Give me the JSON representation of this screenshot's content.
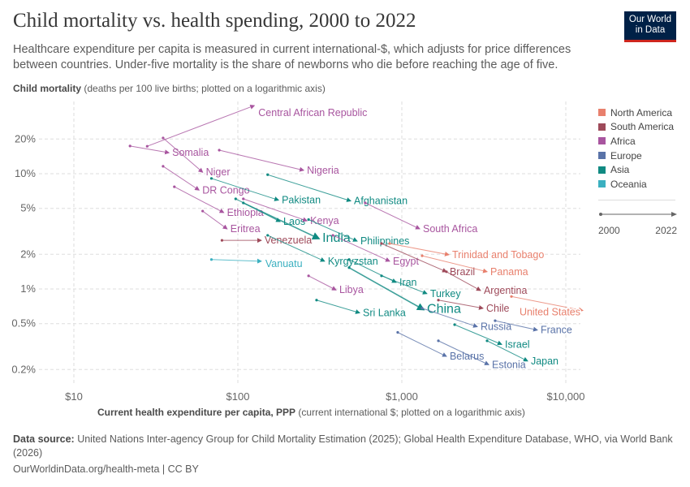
{
  "title": "Child mortality vs. health spending, 2000 to 2022",
  "subtitle": "Healthcare expenditure per capita is measured in current international-$, which adjusts for price differences between countries. Under-five mortality is the share of newborns who die before reaching the age of five.",
  "logo": {
    "line1": "Our World",
    "line2": "in Data",
    "bg": "#002147",
    "accent": "#ce261e"
  },
  "footer": {
    "source_label": "Data source:",
    "source_text": " United Nations Inter-agency Group for Child Mortality Estimation (2025); Global Health Expenditure Database, WHO, via World Bank (2026)",
    "url": "OurWorldinData.org/health-meta | CC BY"
  },
  "legend": {
    "regions": [
      {
        "name": "North America",
        "color": "#E8806D"
      },
      {
        "name": "South America",
        "color": "#9E4A5A"
      },
      {
        "name": "Africa",
        "color": "#A8559F"
      },
      {
        "name": "Europe",
        "color": "#5A73A8"
      },
      {
        "name": "Asia",
        "color": "#108A82"
      },
      {
        "name": "Oceania",
        "color": "#3BB0C0"
      }
    ],
    "time_start": "2000",
    "time_end": "2022"
  },
  "chart_data": {
    "type": "scatter",
    "title": "Child mortality vs. health spending, 2000 to 2022",
    "ylabel_bold": "Child mortality",
    "ylabel_rest": " (deaths per 100 live births; plotted on a logarithmic axis)",
    "xlabel_bold": "Current health expenditure per capita, PPP",
    "xlabel_rest": " (current international $; plotted on a logarithmic axis)",
    "x_scale": "log",
    "y_scale": "log",
    "xlim": [
      6,
      13000
    ],
    "ylim": [
      0.15,
      45
    ],
    "x_ticks": [
      {
        "v": 10,
        "label": "$10"
      },
      {
        "v": 100,
        "label": "$100"
      },
      {
        "v": 1000,
        "label": "$1,000"
      },
      {
        "v": 10000,
        "label": "$10,000"
      }
    ],
    "y_ticks": [
      {
        "v": 20,
        "label": "20%"
      },
      {
        "v": 10,
        "label": "10%"
      },
      {
        "v": 5,
        "label": "5%"
      },
      {
        "v": 2,
        "label": "2%"
      },
      {
        "v": 1,
        "label": "1%"
      },
      {
        "v": 0.5,
        "label": "0.5%"
      },
      {
        "v": 0.2,
        "label": "0.2%"
      }
    ],
    "grid": true,
    "legend_position": "right",
    "series": [
      {
        "name": "Central African Republic",
        "region": "Africa",
        "x": [
          28,
          126
        ],
        "y": [
          17.3,
          39
        ]
      },
      {
        "name": "Somalia",
        "region": "Africa",
        "x": [
          22,
          38
        ],
        "y": [
          17.4,
          15.2
        ]
      },
      {
        "name": "Niger",
        "region": "Africa",
        "x": [
          35,
          61
        ],
        "y": [
          20.4,
          10.3
        ]
      },
      {
        "name": "Nigeria",
        "region": "Africa",
        "x": [
          77,
          252
        ],
        "y": [
          16,
          10.7
        ]
      },
      {
        "name": "DR Congo",
        "region": "Africa",
        "x": [
          35,
          58
        ],
        "y": [
          11.6,
          7.2
        ]
      },
      {
        "name": "Pakistan",
        "region": "Asia",
        "x": [
          69,
          177
        ],
        "y": [
          9.1,
          5.9
        ]
      },
      {
        "name": "Afghanistan",
        "region": "Asia",
        "x": [
          152,
          488
        ],
        "y": [
          9.8,
          5.8
        ]
      },
      {
        "name": "Ethiopia",
        "region": "Africa",
        "x": [
          41,
          82
        ],
        "y": [
          7.7,
          4.6
        ]
      },
      {
        "name": "Laos",
        "region": "Asia",
        "x": [
          97,
          181
        ],
        "y": [
          6.05,
          3.84
        ]
      },
      {
        "name": "Kenya",
        "region": "Africa",
        "x": [
          108,
          264
        ],
        "y": [
          6.05,
          3.9
        ]
      },
      {
        "name": "Eritrea",
        "region": "Africa",
        "x": [
          61,
          86
        ],
        "y": [
          4.74,
          3.32
        ]
      },
      {
        "name": "Venezuela",
        "region": "South America",
        "x": [
          80,
          139
        ],
        "y": [
          2.64,
          2.64
        ]
      },
      {
        "name": "India",
        "region": "Asia",
        "x": [
          108,
          313
        ],
        "y": [
          5.58,
          2.73
        ]
      },
      {
        "name": "Philippines",
        "region": "Asia",
        "x": [
          270,
          534
        ],
        "y": [
          4.0,
          2.6
        ]
      },
      {
        "name": "South Africa",
        "region": "Africa",
        "x": [
          598,
          1285
        ],
        "y": [
          5.58,
          3.32
        ]
      },
      {
        "name": "Trinidad and Tobago",
        "region": "North America",
        "x": [
          843,
          1937
        ],
        "y": [
          2.48,
          1.98
        ]
      },
      {
        "name": "Vanuatu",
        "region": "Oceania",
        "x": [
          69,
          139
        ],
        "y": [
          1.8,
          1.74
        ]
      },
      {
        "name": "Kyrgyzstan",
        "region": "Asia",
        "x": [
          152,
          338
        ],
        "y": [
          2.92,
          1.74
        ]
      },
      {
        "name": "Egypt",
        "region": "Africa",
        "x": [
          380,
          843
        ],
        "y": [
          2.92,
          1.74
        ]
      },
      {
        "name": "Brazil",
        "region": "South America",
        "x": [
          752,
          1871
        ],
        "y": [
          2.48,
          1.41
        ]
      },
      {
        "name": "Panama",
        "region": "North America",
        "x": [
          1330,
          3311
        ],
        "y": [
          1.94,
          1.41
        ]
      },
      {
        "name": "Iran",
        "region": "Asia",
        "x": [
          477,
          923
        ],
        "y": [
          1.8,
          1.14
        ]
      },
      {
        "name": "Argentina",
        "region": "South America",
        "x": [
          1871,
          3020
        ],
        "y": [
          1.41,
          0.97
        ]
      },
      {
        "name": "Turkey",
        "region": "Asia",
        "x": [
          752,
          1422
        ],
        "y": [
          1.3,
          0.91
        ]
      },
      {
        "name": "Libya",
        "region": "Africa",
        "x": [
          270,
          397
        ],
        "y": [
          1.3,
          0.98
        ]
      },
      {
        "name": "China",
        "region": "Asia",
        "x": [
          477,
          1361
        ],
        "y": [
          1.53,
          0.66
        ]
      },
      {
        "name": "Chile",
        "region": "South America",
        "x": [
          1671,
          3126
        ],
        "y": [
          0.8,
          0.68
        ]
      },
      {
        "name": "United States",
        "region": "North America",
        "x": [
          4660,
          12700
        ],
        "y": [
          0.86,
          0.65
        ]
      },
      {
        "name": "Sri Lanka",
        "region": "Asia",
        "x": [
          302,
          553
        ],
        "y": [
          0.8,
          0.62
        ]
      },
      {
        "name": "Russia",
        "region": "Europe",
        "x": [
          1330,
          2885
        ],
        "y": [
          0.68,
          0.47
        ]
      },
      {
        "name": "France",
        "region": "Europe",
        "x": [
          3707,
          6710
        ],
        "y": [
          0.53,
          0.44
        ]
      },
      {
        "name": "Israel",
        "region": "Asia",
        "x": [
          2099,
          4064
        ],
        "y": [
          0.49,
          0.33
        ]
      },
      {
        "name": "Belarus",
        "region": "Europe",
        "x": [
          944,
          1871
        ],
        "y": [
          0.42,
          0.26
        ]
      },
      {
        "name": "Japan",
        "region": "Asia",
        "x": [
          3311,
          5850
        ],
        "y": [
          0.355,
          0.237
        ]
      },
      {
        "name": "Estonia",
        "region": "Europe",
        "x": [
          1671,
          3388
        ],
        "y": [
          0.355,
          0.22
        ]
      }
    ]
  }
}
